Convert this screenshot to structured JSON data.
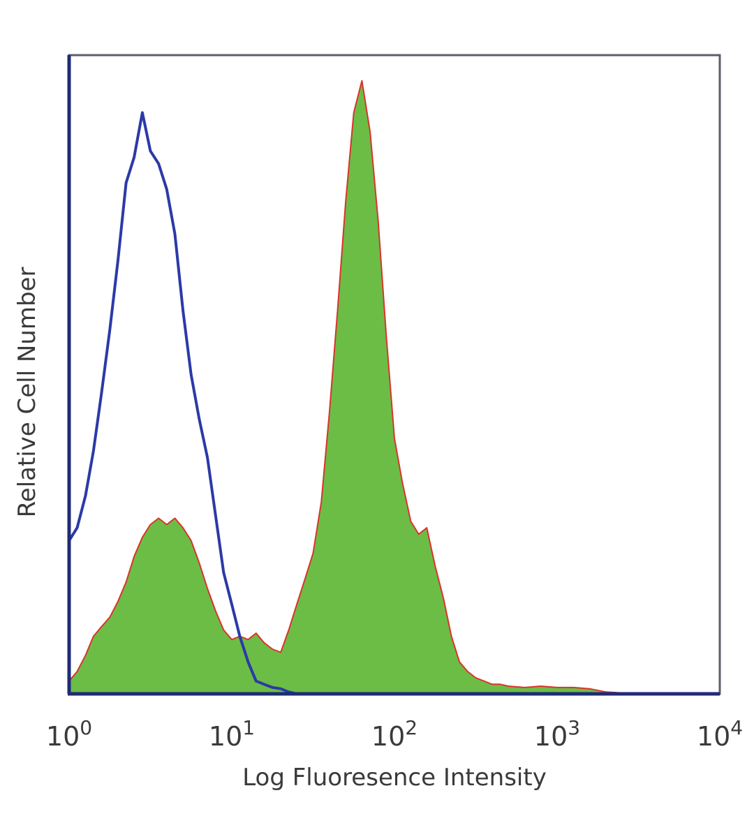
{
  "chart_data": {
    "type": "area",
    "title": "",
    "xlabel": "Log Fluoresence Intensity",
    "ylabel": "Relative Cell Number",
    "xscale": "log",
    "xlim": [
      1,
      10000
    ],
    "ylim": [
      0,
      100
    ],
    "grid": false,
    "legend": "none",
    "xticks": [
      {
        "base": "10",
        "exp": "0",
        "value": 1
      },
      {
        "base": "10",
        "exp": "1",
        "value": 10
      },
      {
        "base": "10",
        "exp": "2",
        "value": 100
      },
      {
        "base": "10",
        "exp": "3",
        "value": 1000
      },
      {
        "base": "10",
        "exp": "4",
        "value": 10000
      }
    ],
    "colors": {
      "axis": "#1f2a78",
      "control_line": "#2b3aa6",
      "stained_fill": "#6cbd45",
      "stained_edge": "#d9342b",
      "text": "#3a3a3a"
    },
    "series": [
      {
        "style": "filled",
        "x": [
          1,
          1.12,
          1.26,
          1.41,
          1.58,
          1.78,
          2.0,
          2.24,
          2.51,
          2.82,
          3.16,
          3.55,
          3.98,
          4.47,
          5.01,
          5.62,
          6.31,
          7.08,
          7.94,
          8.91,
          10.0,
          11.2,
          12.6,
          14.1,
          15.8,
          17.8,
          20.0,
          22.4,
          25.1,
          28.2,
          31.6,
          35.5,
          39.8,
          44.7,
          50.1,
          56.2,
          63.1,
          70.8,
          79.4,
          89.1,
          100,
          112,
          126,
          141,
          158,
          178,
          200,
          224,
          251,
          282,
          316,
          355,
          398,
          447,
          501,
          631,
          794,
          1000,
          1259,
          1585,
          1995,
          3162,
          10000
        ],
        "values": [
          2,
          3.5,
          6,
          9,
          10.5,
          12,
          14.5,
          17.5,
          21.5,
          24.5,
          26.5,
          27.5,
          26.5,
          27.5,
          26,
          24,
          20.5,
          16.5,
          13,
          10,
          8.5,
          9,
          8.5,
          9.5,
          8,
          7,
          6.5,
          10,
          14,
          18,
          22,
          30,
          44,
          60,
          77,
          91,
          96,
          88,
          74,
          56,
          40,
          33,
          27,
          25,
          26,
          20,
          15,
          9,
          5,
          3.5,
          2.5,
          2,
          1.5,
          1.5,
          1.2,
          1,
          1.2,
          1,
          1,
          0.8,
          0.3,
          0,
          0
        ]
      },
      {
        "style": "line",
        "x": [
          1,
          1.12,
          1.26,
          1.41,
          1.58,
          1.78,
          2.0,
          2.24,
          2.51,
          2.82,
          3.16,
          3.55,
          3.98,
          4.47,
          5.01,
          5.62,
          6.31,
          7.08,
          7.94,
          8.91,
          10.0,
          11.2,
          12.6,
          14.1,
          15.8,
          17.8,
          20.0,
          22.4,
          25.1
        ],
        "values": [
          24,
          26,
          31,
          38,
          47,
          57,
          68,
          80,
          84,
          91,
          85,
          83,
          79,
          72,
          60,
          50,
          43,
          37,
          28,
          19,
          14,
          9,
          5,
          2,
          1.5,
          1,
          0.8,
          0.3,
          0
        ]
      }
    ]
  }
}
